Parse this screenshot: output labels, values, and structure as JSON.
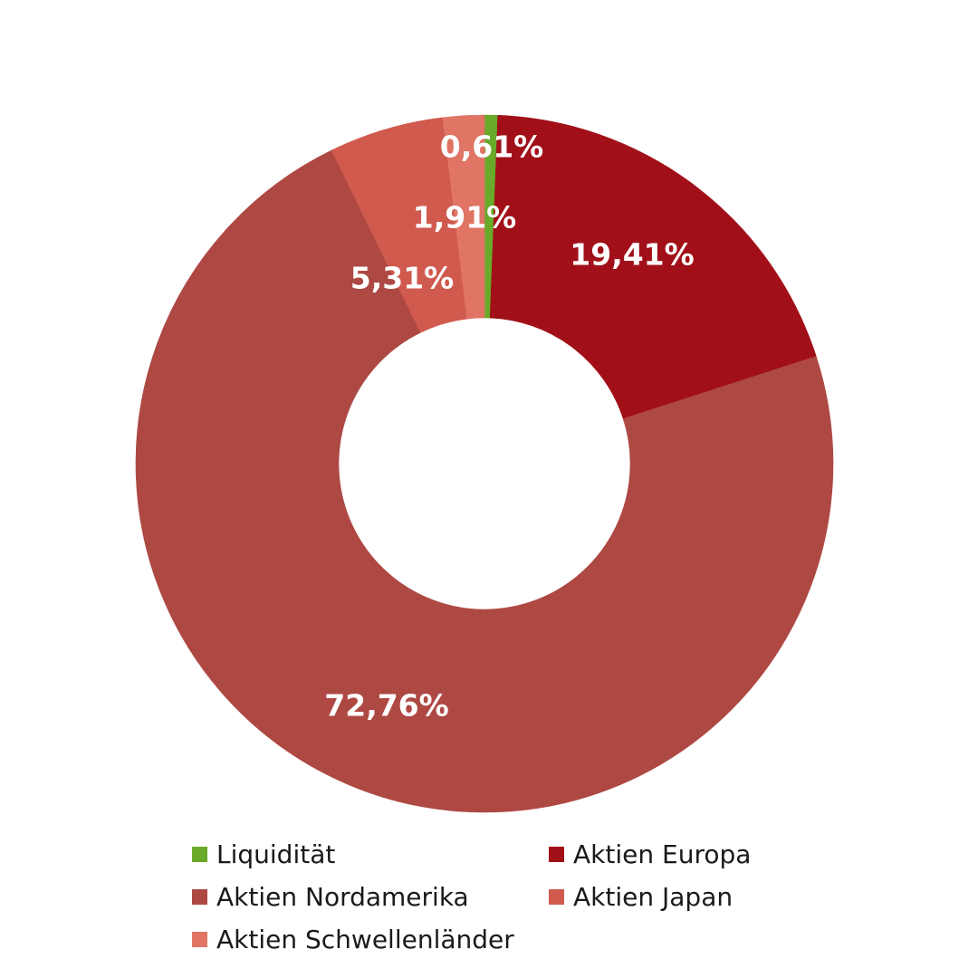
{
  "chart_data": {
    "type": "pie",
    "donut": true,
    "title": "",
    "legend_position": "bottom",
    "series": [
      {
        "name": "Liquidität",
        "value": 0.61,
        "label": "0,61%",
        "color": "#6aaa2a"
      },
      {
        "name": "Aktien Europa",
        "value": 19.41,
        "label": "19,41%",
        "color": "#a11018"
      },
      {
        "name": "Aktien Nordamerika",
        "value": 72.76,
        "label": "72,76%",
        "color": "#ae4843"
      },
      {
        "name": "Aktien Japan",
        "value": 5.31,
        "label": "5,31%",
        "color": "#d05a4e"
      },
      {
        "name": "Aktien Schwellenländer",
        "value": 1.91,
        "label": "1,91%",
        "color": "#e07565"
      }
    ]
  },
  "legend": {
    "items": [
      {
        "label": "Liquidität",
        "color": "#6aaa2a"
      },
      {
        "label": "Aktien Europa",
        "color": "#a11018"
      },
      {
        "label": "Aktien Nordamerika",
        "color": "#ae4843"
      },
      {
        "label": "Aktien Japan",
        "color": "#d05a4e"
      },
      {
        "label": "Aktien Schwellenländer",
        "color": "#e07565"
      }
    ]
  }
}
